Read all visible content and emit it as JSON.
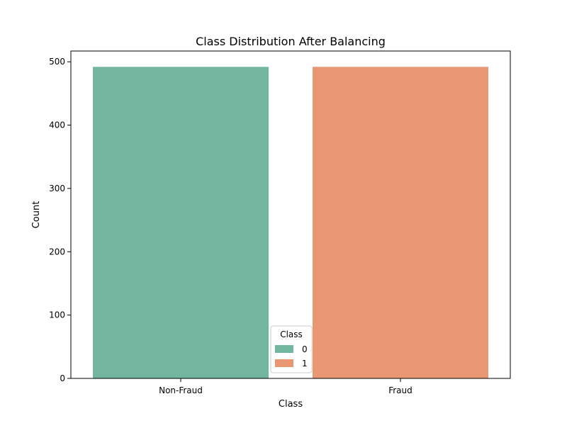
{
  "chart_data": {
    "type": "bar",
    "title": "Class Distribution After Balancing",
    "xlabel": "Class",
    "ylabel": "Count",
    "categories": [
      "Non-Fraud",
      "Fraud"
    ],
    "values": [
      492,
      492
    ],
    "colors": [
      "#73b6a0",
      "#e99673"
    ],
    "ylim": [
      0,
      517
    ],
    "yticks": [
      0,
      100,
      200,
      300,
      400,
      500
    ],
    "grid": false,
    "legend": {
      "title": "Class",
      "placement": "lower-center",
      "entries": [
        {
          "label": "0",
          "color": "#73b6a0"
        },
        {
          "label": "1",
          "color": "#e99673"
        }
      ]
    }
  }
}
